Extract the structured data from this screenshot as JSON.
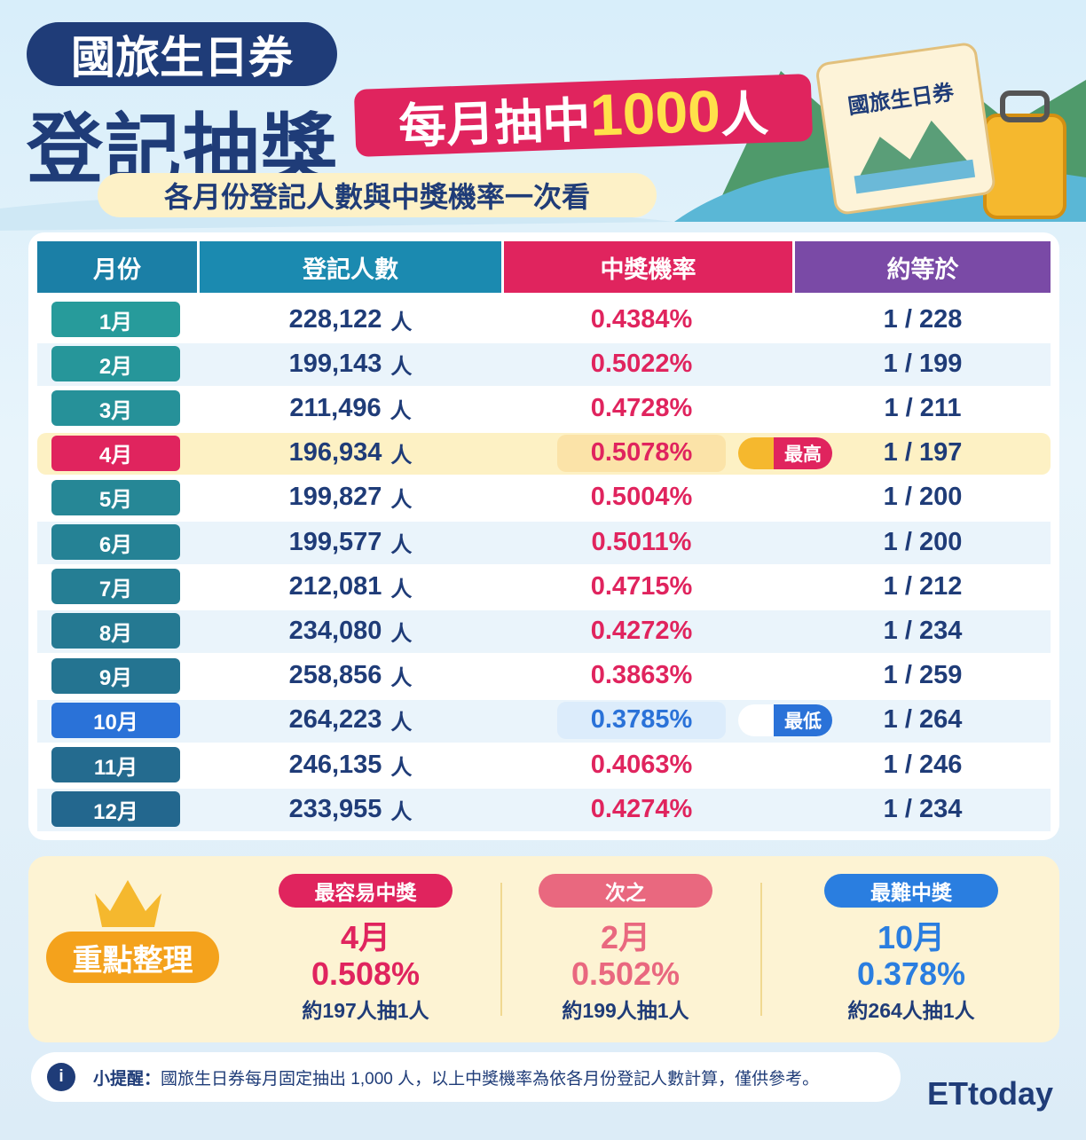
{
  "header": {
    "title_top": "國旅生日券",
    "title_main": "登記抽獎",
    "banner_prefix": "每月抽中",
    "banner_number": "1000",
    "banner_suffix": "人",
    "subtitle": "各月份登記人數與中獎機率一次看",
    "card_text": "國旅生日券"
  },
  "table": {
    "headers": [
      "月份",
      "登記人數",
      "中獎機率",
      "約等於"
    ],
    "rows": [
      {
        "month": "1月",
        "registrants": "228,122",
        "unit": "人",
        "rate": "0.4384%",
        "ratio": "1 / 228"
      },
      {
        "month": "2月",
        "registrants": "199,143",
        "unit": "人",
        "rate": "0.5022%",
        "ratio": "1 / 199"
      },
      {
        "month": "3月",
        "registrants": "211,496",
        "unit": "人",
        "rate": "0.4728%",
        "ratio": "1 / 211"
      },
      {
        "month": "4月",
        "registrants": "196,934",
        "unit": "人",
        "rate": "0.5078%",
        "ratio": "1 / 197",
        "badge": "最高",
        "color": "#e0245e"
      },
      {
        "month": "5月",
        "registrants": "199,827",
        "unit": "人",
        "rate": "0.5004%",
        "ratio": "1 / 200"
      },
      {
        "month": "6月",
        "registrants": "199,577",
        "unit": "人",
        "rate": "0.5011%",
        "ratio": "1 / 200"
      },
      {
        "month": "7月",
        "registrants": "212,081",
        "unit": "人",
        "rate": "0.4715%",
        "ratio": "1 / 212"
      },
      {
        "month": "8月",
        "registrants": "234,080",
        "unit": "人",
        "rate": "0.4272%",
        "ratio": "1 / 234"
      },
      {
        "month": "9月",
        "registrants": "258,856",
        "unit": "人",
        "rate": "0.3863%",
        "ratio": "1 / 259"
      },
      {
        "month": "10月",
        "registrants": "264,223",
        "unit": "人",
        "rate": "0.3785%",
        "ratio": "1 / 264",
        "badge": "最低",
        "color": "#2a72d8"
      },
      {
        "month": "11月",
        "registrants": "246,135",
        "unit": "人",
        "rate": "0.4063%",
        "ratio": "1 / 246"
      },
      {
        "month": "12月",
        "registrants": "233,955",
        "unit": "人",
        "rate": "0.4274%",
        "ratio": "1 / 234"
      }
    ]
  },
  "summary": {
    "title": "重點整理",
    "items": [
      {
        "label": "最容易中獎",
        "month": "4月",
        "rate": "0.508%",
        "note": "約197人抽1人",
        "color": "#e0245e"
      },
      {
        "label": "次之",
        "month": "2月",
        "rate": "0.502%",
        "note": "約199人抽1人",
        "color": "#e9687f"
      },
      {
        "label": "最難中獎",
        "month": "10月",
        "rate": "0.378%",
        "note": "約264人抽1人",
        "color": "#2a7ee0"
      }
    ]
  },
  "footer": {
    "note_label": "小提醒：",
    "note_text": "國旅生日券每月固定抽出 1,000 人，以上中獎機率為依各月份登記人數計算，僅供參考。",
    "logo": "ETtoday"
  }
}
